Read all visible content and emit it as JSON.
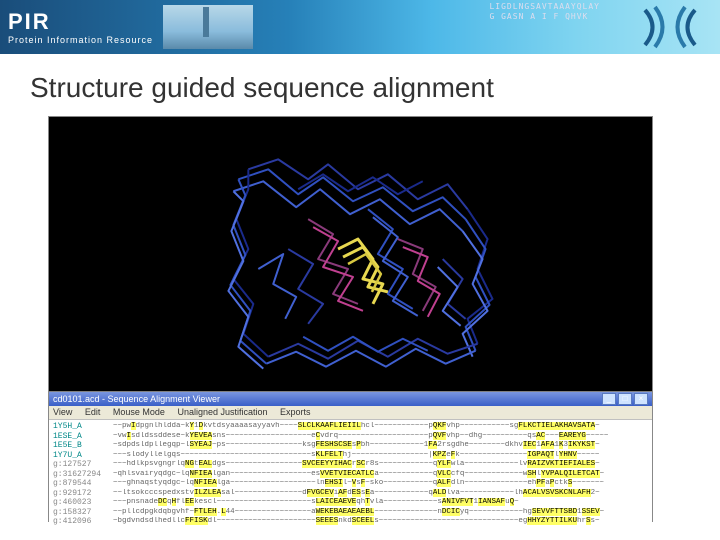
{
  "header": {
    "logo_big": "PIR",
    "logo_sub": "Protein Information Resource",
    "seq_line1": "LIGDLNGSAVTAAAYQLAY",
    "seq_line2": "G GASN    A I F QHVK"
  },
  "title": "Structure guided sequence alignment",
  "structure": {
    "background": "#000000",
    "colors": {
      "blue_dark": "#1a2a8a",
      "blue_med": "#3050c0",
      "blue_light": "#5070e0",
      "purple": "#8a3a7a",
      "magenta": "#c04090",
      "yellow": "#e8d850"
    }
  },
  "alignment": {
    "title": "cd0101.acd - Sequence Alignment Viewer",
    "menu": [
      "View",
      "Edit",
      "Mouse Mode",
      "Unaligned Justification",
      "Exports"
    ],
    "rows": [
      {
        "id": "1Y5H_A",
        "cls": "c-teal",
        "seq": "~~pwIdpgnlhldda~kY1Dkvtdsyaaaasayyavh~~~~SLCLKAAFLIEIILhcl~~~~~~~~~~~~pQKFvhp~~~~~~~~~~~sgFLKCTIELAKHAVSATA~"
      },
      {
        "id": "1ESE_A",
        "cls": "c-teal",
        "seq": "~vwIsdldssddese~kYEVEAsns~~~~~~~~~~~~~~~~~~~eCvdrq~~~~~~~~~~~~~~~~~~~~pQVFvhp~~dhg~~~~~~~~~~qsAC~~~EAREYG~~~~~"
      },
      {
        "id": "1E5E_B",
        "cls": "c-teal",
        "seq": "~sdpdsldpllegqp~lSYEAJ~ps~~~~~~~~~~~~~~~~~ksgFESHSCSEsPbh~~~~~~~~~~~~1FA2rsgdhe~~~~~~~~dkhvIEC1AFA1K3IKYKST~"
      },
      {
        "id": "1Y7U_A",
        "cls": "c-teal",
        "seq": "~~~slodyllelgqs~~~~~~~~~~~~~~~~~~~~~~~~~~~~~sKLFELThj~~~~~~~~~~~~~~~~~|KPZeFk~~~~~~~~~~~~~~~IGPAQTlYHNV~~~~~"
      },
      {
        "id": "g:127527",
        "cls": "c-gray",
        "seq": "~~~hdlkpsvgngrlqNGtEALdgs~~~~~~~~~~~~~~~~~SVCEEYYIHACrSCr8s~~~~~~~~~~~~qYLFwla~~~~~~~~~~~~lvRAIZVKTIEFIALES~"
      },
      {
        "id": "g:31627294",
        "cls": "c-gray",
        "seq": "~qhlsvairyqdgc~lqNFIEAlgan~~~~~~~~~~~~~~~~~~esVVETVIECATLCa~~~~~~~~~~~~qVLCcfq~~~~~~~~~~~~~wSHlYVPALQILETCAT~"
      },
      {
        "id": "g:879544",
        "cls": "c-gray",
        "seq": "~~~ghnaqstyqdgc~lqNFIEAlga~~~~~~~~~~~~~~~~~~~lnEHSIl~VsF~sko~~~~~~~~~~~qALFdln~~~~~~~~~~~~~~ehPFaPctkS~~~~~~~"
      },
      {
        "id": "g:929172",
        "cls": "c-gray",
        "seq": "~~ltsokcccspedxstvILZLEAsal~~~~~~~~~~~~~~~dFVGCEViAFdESsEa~~~~~~~~~~~~qALDlva~~~~~~~~~~~~lhACALVSVSKCNLAFH2~"
      },
      {
        "id": "g:460023",
        "cls": "c-gray",
        "seq": "~~~pnsnadeDCqHflEEkescl~~~~~~~~~~~~~~~~~~~~~sLAICEAEVEqhTvla~~~~~~~~~~~~sANIVFVT1IANSAFuQ~"
      },
      {
        "id": "g:158327",
        "cls": "c-gray",
        "seq": "~~pllcdpgkdqbgvhf~FTLEH.L44~~~~~~~~~~~~~~~~~aWEKEBAEAEAEBL~~~~~~~~~~~~~~nDCICyq~~~~~~~~~~~~hgSEVVFTTSBD1SSEV~"
      },
      {
        "id": "g:412096",
        "cls": "c-gray",
        "seq": "~bgdvndsdlhedllcFFISKdl~~~~~~~~~~~~~~~~~~~~~~SEEESnkdSCEELs~~~~~~~~~~~~~~~~~~~~~~~~~~~~~~~egHHYZYTTILKUhrSs~"
      }
    ]
  }
}
